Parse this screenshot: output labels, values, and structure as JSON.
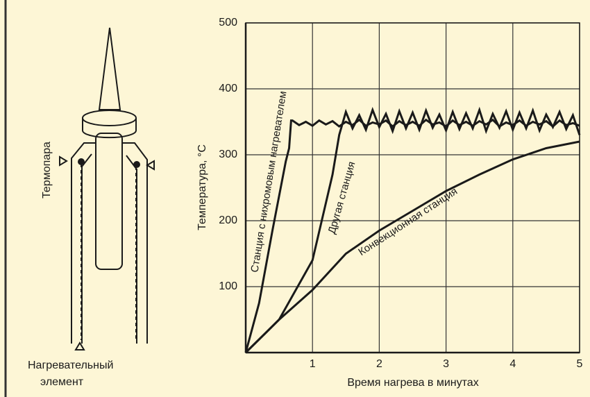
{
  "chart_data": {
    "type": "line",
    "xlabel": "Время нагрева в минутах",
    "ylabel": "Температура, °С",
    "xlim": [
      0,
      5
    ],
    "xticks": [
      1,
      2,
      3,
      4,
      5
    ],
    "ylim": [
      0,
      500
    ],
    "yticks": [
      100,
      200,
      300,
      400,
      500
    ],
    "grid": true,
    "series": [
      {
        "name": "Станция с нихромовым нагревателем",
        "color": "#1a1a1a",
        "x": [
          0,
          0.2,
          0.4,
          0.6,
          0.65,
          0.68,
          0.7,
          0.8,
          0.9,
          1,
          1.1,
          1.2,
          1.3,
          1.4,
          1.5,
          1.6,
          1.7,
          1.8,
          1.9,
          2,
          2.1,
          2.2,
          2.3,
          2.4,
          2.5,
          2.6,
          2.7,
          2.8,
          2.9,
          3,
          3.1,
          3.2,
          3.3,
          3.4,
          3.5,
          3.6,
          3.7,
          3.8,
          3.9,
          4,
          4.1,
          4.2,
          4.3,
          4.4,
          4.5,
          4.6,
          4.7,
          4.8,
          4.9,
          5
        ],
        "values": [
          0,
          75,
          185,
          290,
          310,
          352,
          352,
          345,
          350,
          344,
          352,
          346,
          351,
          343,
          350,
          345,
          353,
          344,
          349,
          346,
          352,
          343,
          351,
          345,
          350,
          344,
          353,
          346,
          349,
          343,
          352,
          345,
          350,
          344,
          351,
          346,
          353,
          343,
          349,
          345,
          352,
          344,
          350,
          346,
          351,
          343,
          352,
          345,
          348,
          344
        ]
      },
      {
        "name": "Другая станция",
        "color": "#1a1a1a",
        "x": [
          0,
          0.5,
          1,
          1.3,
          1.4,
          1.5,
          1.6,
          1.7,
          1.8,
          1.9,
          2,
          2.1,
          2.2,
          2.3,
          2.4,
          2.5,
          2.6,
          2.7,
          2.8,
          2.9,
          3,
          3.1,
          3.2,
          3.3,
          3.4,
          3.5,
          3.6,
          3.7,
          3.8,
          3.9,
          4,
          4.1,
          4.2,
          4.3,
          4.4,
          4.5,
          4.6,
          4.7,
          4.8,
          4.9,
          5
        ],
        "values": [
          0,
          50,
          140,
          270,
          330,
          365,
          340,
          360,
          338,
          368,
          342,
          362,
          336,
          366,
          340,
          364,
          338,
          367,
          341,
          361,
          337,
          365,
          339,
          363,
          340,
          368,
          336,
          362,
          341,
          366,
          338,
          364,
          340,
          367,
          337,
          361,
          342,
          365,
          339,
          360,
          330
        ]
      },
      {
        "name": "Конвекционная станция",
        "color": "#1a1a1a",
        "x": [
          0,
          0.5,
          1,
          1.5,
          2,
          2.5,
          3,
          3.5,
          4,
          4.5,
          5
        ],
        "values": [
          0,
          50,
          95,
          150,
          185,
          215,
          245,
          270,
          293,
          310,
          320
        ]
      }
    ]
  },
  "diagram": {
    "thermocouple_label": "Термопара",
    "heater_label": [
      "Нагревательный",
      "элемент"
    ]
  }
}
